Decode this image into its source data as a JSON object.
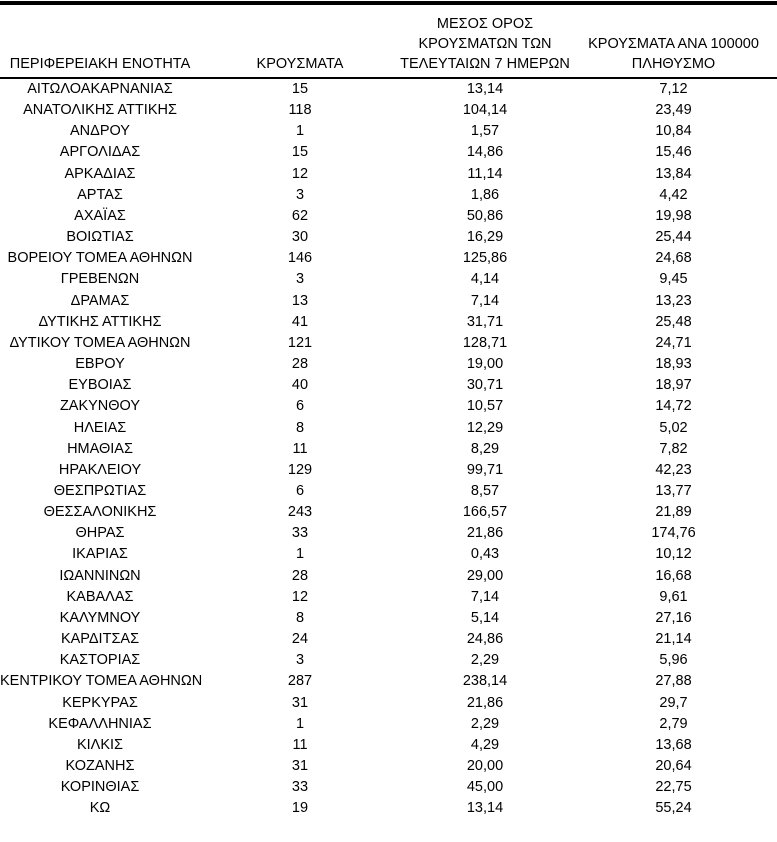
{
  "colors": {
    "background": "#ffffff",
    "text": "#000000",
    "rule": "#000000"
  },
  "table": {
    "headers": [
      {
        "id": "region",
        "label": "ΠΕΡΙΦΕΡΕΙΑΚΗ ΕΝΟΤΗΤΑ"
      },
      {
        "id": "cases",
        "label": "ΚΡΟΥΣΜΑΤΑ"
      },
      {
        "id": "avg_7day",
        "label": "ΜΕΣΟΣ ΟΡΟΣ\nΚΡΟΥΣΜΑΤΩΝ ΤΩΝ\nΤΕΛΕΥΤΑΙΩΝ 7 ΗΜΕΡΩΝ"
      },
      {
        "id": "per_100k",
        "label": "ΚΡΟΥΣΜΑΤΑ ΑΝΑ 100000\nΠΛΗΘΥΣΜΟ"
      }
    ],
    "rows": [
      {
        "region": "ΑΙΤΩΛΟΑΚΑΡΝΑΝΙΑΣ",
        "cases": "15",
        "avg_7day": "13,14",
        "per_100k": "7,12"
      },
      {
        "region": "ΑΝΑΤΟΛΙΚΗΣ ΑΤΤΙΚΗΣ",
        "cases": "118",
        "avg_7day": "104,14",
        "per_100k": "23,49"
      },
      {
        "region": "ΑΝΔΡΟΥ",
        "cases": "1",
        "avg_7day": "1,57",
        "per_100k": "10,84"
      },
      {
        "region": "ΑΡΓΟΛΙΔΑΣ",
        "cases": "15",
        "avg_7day": "14,86",
        "per_100k": "15,46"
      },
      {
        "region": "ΑΡΚΑΔΙΑΣ",
        "cases": "12",
        "avg_7day": "11,14",
        "per_100k": "13,84"
      },
      {
        "region": "ΑΡΤΑΣ",
        "cases": "3",
        "avg_7day": "1,86",
        "per_100k": "4,42"
      },
      {
        "region": "ΑΧΑΪΑΣ",
        "cases": "62",
        "avg_7day": "50,86",
        "per_100k": "19,98"
      },
      {
        "region": "ΒΟΙΩΤΙΑΣ",
        "cases": "30",
        "avg_7day": "16,29",
        "per_100k": "25,44"
      },
      {
        "region": "ΒΟΡΕΙΟΥ ΤΟΜΕΑ ΑΘΗΝΩΝ",
        "cases": "146",
        "avg_7day": "125,86",
        "per_100k": "24,68"
      },
      {
        "region": "ΓΡΕΒΕΝΩΝ",
        "cases": "3",
        "avg_7day": "4,14",
        "per_100k": "9,45"
      },
      {
        "region": "ΔΡΑΜΑΣ",
        "cases": "13",
        "avg_7day": "7,14",
        "per_100k": "13,23"
      },
      {
        "region": "ΔΥΤΙΚΗΣ ΑΤΤΙΚΗΣ",
        "cases": "41",
        "avg_7day": "31,71",
        "per_100k": "25,48"
      },
      {
        "region": "ΔΥΤΙΚΟΥ ΤΟΜΕΑ ΑΘΗΝΩΝ",
        "cases": "121",
        "avg_7day": "128,71",
        "per_100k": "24,71"
      },
      {
        "region": "ΕΒΡΟΥ",
        "cases": "28",
        "avg_7day": "19,00",
        "per_100k": "18,93"
      },
      {
        "region": "ΕΥΒΟΙΑΣ",
        "cases": "40",
        "avg_7day": "30,71",
        "per_100k": "18,97"
      },
      {
        "region": "ΖΑΚΥΝΘΟΥ",
        "cases": "6",
        "avg_7day": "10,57",
        "per_100k": "14,72"
      },
      {
        "region": "ΗΛΕΙΑΣ",
        "cases": "8",
        "avg_7day": "12,29",
        "per_100k": "5,02"
      },
      {
        "region": "ΗΜΑΘΙΑΣ",
        "cases": "11",
        "avg_7day": "8,29",
        "per_100k": "7,82"
      },
      {
        "region": "ΗΡΑΚΛΕΙΟΥ",
        "cases": "129",
        "avg_7day": "99,71",
        "per_100k": "42,23"
      },
      {
        "region": "ΘΕΣΠΡΩΤΙΑΣ",
        "cases": "6",
        "avg_7day": "8,57",
        "per_100k": "13,77"
      },
      {
        "region": "ΘΕΣΣΑΛΟΝΙΚΗΣ",
        "cases": "243",
        "avg_7day": "166,57",
        "per_100k": "21,89"
      },
      {
        "region": "ΘΗΡΑΣ",
        "cases": "33",
        "avg_7day": "21,86",
        "per_100k": "174,76"
      },
      {
        "region": "ΙΚΑΡΙΑΣ",
        "cases": "1",
        "avg_7day": "0,43",
        "per_100k": "10,12"
      },
      {
        "region": "ΙΩΑΝΝΙΝΩΝ",
        "cases": "28",
        "avg_7day": "29,00",
        "per_100k": "16,68"
      },
      {
        "region": "ΚΑΒΑΛΑΣ",
        "cases": "12",
        "avg_7day": "7,14",
        "per_100k": "9,61"
      },
      {
        "region": "ΚΑΛΥΜΝΟΥ",
        "cases": "8",
        "avg_7day": "5,14",
        "per_100k": "27,16"
      },
      {
        "region": "ΚΑΡΔΙΤΣΑΣ",
        "cases": "24",
        "avg_7day": "24,86",
        "per_100k": "21,14"
      },
      {
        "region": "ΚΑΣΤΟΡΙΑΣ",
        "cases": "3",
        "avg_7day": "2,29",
        "per_100k": "5,96"
      },
      {
        "region": "ΚΕΝΤΡΙΚΟΥ ΤΟΜΕΑ ΑΘΗΝΩΝ",
        "cases": "287",
        "avg_7day": "238,14",
        "per_100k": "27,88"
      },
      {
        "region": "ΚΕΡΚΥΡΑΣ",
        "cases": "31",
        "avg_7day": "21,86",
        "per_100k": "29,7"
      },
      {
        "region": "ΚΕΦΑΛΛΗΝΙΑΣ",
        "cases": "1",
        "avg_7day": "2,29",
        "per_100k": "2,79"
      },
      {
        "region": "ΚΙΛΚΙΣ",
        "cases": "11",
        "avg_7day": "4,29",
        "per_100k": "13,68"
      },
      {
        "region": "ΚΟΖΑΝΗΣ",
        "cases": "31",
        "avg_7day": "20,00",
        "per_100k": "20,64"
      },
      {
        "region": "ΚΟΡΙΝΘΙΑΣ",
        "cases": "33",
        "avg_7day": "45,00",
        "per_100k": "22,75"
      },
      {
        "region": "ΚΩ",
        "cases": "19",
        "avg_7day": "13,14",
        "per_100k": "55,24"
      }
    ]
  }
}
